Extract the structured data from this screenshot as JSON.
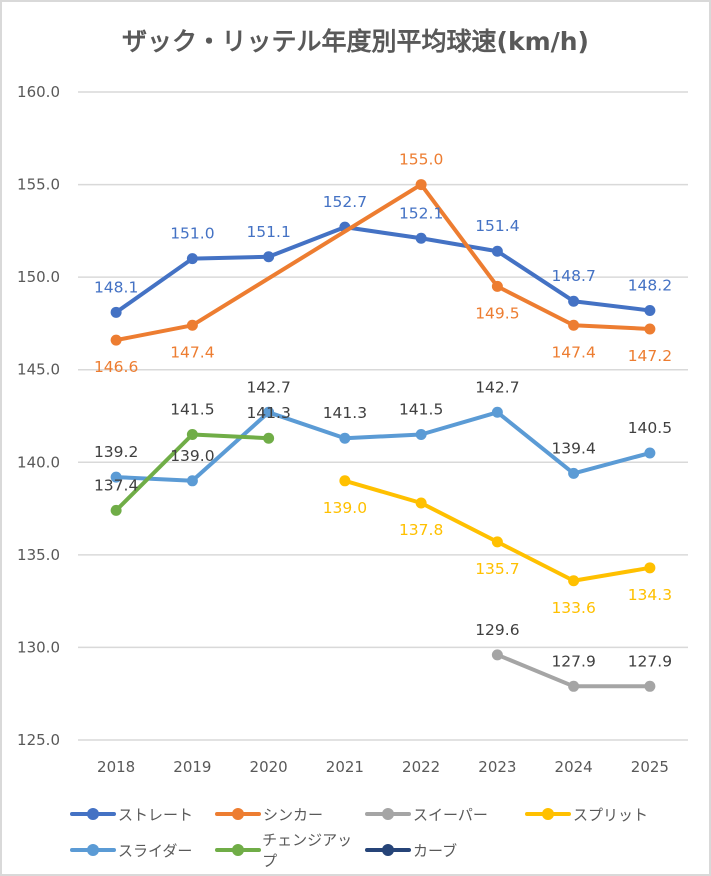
{
  "chart_data": {
    "type": "line",
    "title": "ザック・リッテル年度別平均球速(km/h)",
    "xlabel": "",
    "ylabel": "",
    "categories": [
      "2018",
      "2019",
      "2020",
      "2021",
      "2022",
      "2023",
      "2024",
      "2025"
    ],
    "ylim": [
      125.0,
      160.0
    ],
    "yticks": [
      "160.0",
      "155.0",
      "150.0",
      "145.0",
      "140.0",
      "135.0",
      "130.0",
      "125.0"
    ],
    "grid": true,
    "legend_position": "bottom",
    "series": [
      {
        "name": "ストレート",
        "color": "#4472c4",
        "label_pos": [
          "above",
          "above",
          "above",
          "above",
          "above",
          "above",
          "above",
          "above"
        ],
        "values": [
          148.1,
          151.0,
          151.1,
          152.7,
          152.1,
          151.4,
          148.7,
          148.2
        ]
      },
      {
        "name": "シンカー",
        "color": "#ed7d31",
        "label_pos": [
          "below",
          "below",
          null,
          null,
          "above",
          "below",
          "below",
          "below"
        ],
        "values": [
          146.6,
          147.4,
          null,
          null,
          155.0,
          149.5,
          147.4,
          147.2
        ]
      },
      {
        "name": "スイーパー",
        "color": "#a5a5a5",
        "label_color": "#404040",
        "label_pos": [
          null,
          null,
          null,
          null,
          null,
          "above",
          "above",
          "above"
        ],
        "values": [
          null,
          null,
          null,
          null,
          null,
          129.6,
          127.9,
          127.9
        ]
      },
      {
        "name": "スプリット",
        "color": "#ffc000",
        "label_pos": [
          null,
          null,
          null,
          "below",
          "below",
          "below",
          "below",
          "below"
        ],
        "values": [
          null,
          null,
          null,
          139.0,
          137.8,
          135.7,
          133.6,
          134.3
        ]
      },
      {
        "name": "スライダー",
        "color": "#5b9bd5",
        "label_color": "#404040",
        "label_pos": [
          "above",
          "above",
          "above",
          "above",
          "above",
          "above",
          "above",
          "above"
        ],
        "values": [
          139.2,
          139.0,
          142.7,
          141.3,
          141.5,
          142.7,
          139.4,
          140.5
        ]
      },
      {
        "name": "チェンジアップ",
        "color": "#70ad47",
        "label_color": "#404040",
        "label_pos": [
          "above",
          "above",
          "above",
          null,
          null,
          null,
          null,
          null
        ],
        "values": [
          137.4,
          141.5,
          141.3,
          null,
          null,
          null,
          null,
          null
        ]
      },
      {
        "name": "カーブ",
        "color": "#264478",
        "label_pos": [
          null,
          null,
          null,
          null,
          null,
          null,
          null,
          null
        ],
        "values": [
          null,
          null,
          null,
          null,
          null,
          null,
          null,
          null
        ]
      }
    ],
    "connect_gaps": true
  },
  "legend": {
    "rows": [
      [
        0,
        1,
        2,
        3
      ],
      [
        4,
        5,
        6
      ]
    ]
  }
}
